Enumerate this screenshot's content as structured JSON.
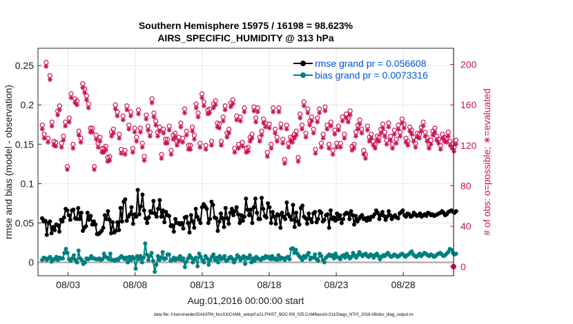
{
  "chart_data": {
    "type": "line",
    "title_line1": "Southern Hemisphere 15975 / 16198 = 98.623%",
    "title_line2": "AIRS_SPECIFIC_HUMIDITY @ 313 hPa",
    "xlabel": "Aug.01,2016 00:00:00 start",
    "ylabel_left": "rmse and bias (model - observation)",
    "ylabel_right": "# of obs: o=possible; ∗=evaluated",
    "footnote": "data file: /Users/raeder/DAI/ATM_forcXX/CAM6_setup/f.e21.FHIST_BGC.f09_025.CAM6assim.011/Diags_NTrS_2016-08/obs_diag_output.nc",
    "x_tick_labels": [
      "08/03",
      "08/08",
      "08/13",
      "08/18",
      "08/23",
      "08/28"
    ],
    "x_tick_values": [
      3,
      8,
      13,
      18,
      23,
      28
    ],
    "xlim": [
      0.75,
      31.75
    ],
    "y_left_ticks": [
      0,
      0.05,
      0.1,
      0.15,
      0.2,
      0.25
    ],
    "y_left_tick_labels": [
      "0",
      "0.05",
      "0.1",
      "0.15",
      "0.2",
      "0.25"
    ],
    "ylim_left": [
      -0.017,
      0.272
    ],
    "y_right_ticks": [
      0,
      40,
      80,
      120,
      160,
      200
    ],
    "y_right_tick_labels": [
      "0",
      "40",
      "80",
      "120",
      "160",
      "200"
    ],
    "ylim_right": [
      -9,
      216
    ],
    "grid": true,
    "legend_position": "top-right",
    "colors": {
      "rmse": "#000000",
      "bias": "#00807f",
      "counts": "#cc1155",
      "legend_text": "#0055dd",
      "zero_line": "#b0b0b0"
    },
    "series": [
      {
        "name": "rmse",
        "legend": "rmse grand pr = 0.056608",
        "axis": "left",
        "values": [
          0.056,
          0.052,
          0.053,
          0.035,
          0.05,
          0.052,
          0.037,
          0.045,
          0.041,
          0.048,
          0.047,
          0.039,
          0.054,
          0.052,
          0.057,
          0.068,
          0.066,
          0.06,
          0.054,
          0.066,
          0.067,
          0.056,
          0.055,
          0.069,
          0.055,
          0.063,
          0.04,
          0.044,
          0.046,
          0.063,
          0.054,
          0.059,
          0.048,
          0.052,
          0.048,
          0.036,
          0.036,
          0.038,
          0.04,
          0.044,
          0.06,
          0.055,
          0.065,
          0.054,
          0.037,
          0.051,
          0.038,
          0.04,
          0.051,
          0.041,
          0.069,
          0.052,
          0.077,
          0.08,
          0.053,
          0.058,
          0.061,
          0.07,
          0.049,
          0.061,
          0.058,
          0.092,
          0.061,
          0.071,
          0.086,
          0.066,
          0.056,
          0.05,
          0.057,
          0.065,
          0.063,
          0.078,
          0.062,
          0.058,
          0.068,
          0.079,
          0.058,
          0.066,
          0.051,
          0.064,
          0.06,
          0.059,
          0.046,
          0.047,
          0.039,
          0.055,
          0.05,
          0.05,
          0.048,
          0.05,
          0.043,
          0.057,
          0.058,
          0.05,
          0.038,
          0.06,
          0.052,
          0.044,
          0.068,
          0.058,
          0.054,
          0.05,
          0.07,
          0.074,
          0.071,
          0.068,
          0.05,
          0.055,
          0.077,
          0.073,
          0.057,
          0.056,
          0.04,
          0.052,
          0.062,
          0.056,
          0.045,
          0.069,
          0.056,
          0.049,
          0.063,
          0.068,
          0.06,
          0.065,
          0.07,
          0.061,
          0.05,
          0.06,
          0.053,
          0.058,
          0.081,
          0.067,
          0.06,
          0.067,
          0.05,
          0.07,
          0.081,
          0.063,
          0.055,
          0.055,
          0.082,
          0.068,
          0.059,
          0.057,
          0.075,
          0.07,
          0.05,
          0.064,
          0.058,
          0.049,
          0.061,
          0.06,
          0.044,
          0.063,
          0.058,
          0.055,
          0.076,
          0.061,
          0.058,
          0.054,
          0.073,
          0.045,
          0.063,
          0.052,
          0.048,
          0.069,
          0.072,
          0.058,
          0.056,
          0.049,
          0.062,
          0.055,
          0.051,
          0.062,
          0.064,
          0.051,
          0.055,
          0.065,
          0.063,
          0.052,
          0.054,
          0.06,
          0.061,
          0.044,
          0.066,
          0.055,
          0.057,
          0.053,
          0.062,
          0.055,
          0.06,
          0.05,
          0.055,
          0.061,
          0.063,
          0.062,
          0.055,
          0.065,
          0.06,
          0.048,
          0.059,
          0.052,
          0.055,
          0.058,
          0.06,
          0.055,
          0.056,
          0.053,
          0.057,
          0.054,
          0.058,
          0.058,
          0.061,
          0.066,
          0.063,
          0.055,
          0.06,
          0.064,
          0.059,
          0.054,
          0.058,
          0.065,
          0.06,
          0.055,
          0.058,
          0.06,
          0.057,
          0.056,
          0.062,
          0.064,
          0.066,
          0.06,
          0.058,
          0.062,
          0.061,
          0.058,
          0.059,
          0.063,
          0.061,
          0.059,
          0.06,
          0.062,
          0.058,
          0.06,
          0.061,
          0.059,
          0.063,
          0.062,
          0.06,
          0.061,
          0.059,
          0.06,
          0.061,
          0.062,
          0.063,
          0.065,
          0.063,
          0.06,
          0.061,
          0.064,
          0.065,
          0.066,
          0.064,
          0.063,
          0.065
        ]
      },
      {
        "name": "bias",
        "legend": "bias grand pr = 0.0073316",
        "axis": "left",
        "values": [
          0.003,
          0.006,
          0.005,
          0.003,
          0.005,
          0.007,
          0.001,
          0.004,
          0.004,
          0.007,
          0.003,
          0.006,
          0.005,
          0.005,
          0.012,
          0.017,
          0.012,
          0.004,
          0.002,
          0.005,
          0.009,
          0.003,
          0.0,
          0.015,
          0.005,
          0.003,
          -0.002,
          0.0,
          0.005,
          0.004,
          0.005,
          0.008,
          0.005,
          0.005,
          0.004,
          0.004,
          0.005,
          0.003,
          0.004,
          0.011,
          0.007,
          0.006,
          0.004,
          0.011,
          0.003,
          0.003,
          0.002,
          0.004,
          0.003,
          0.006,
          0.008,
          0.006,
          0.004,
          0.006,
          0.0,
          0.007,
          0.003,
          0.007,
          0.005,
          -0.008,
          0.008,
          0.004,
          0.008,
          0.0,
          0.006,
          0.024,
          0.01,
          0.003,
          0.008,
          0.012,
          0.002,
          -0.012,
          -0.003,
          0.008,
          0.003,
          0.006,
          0.013,
          0.004,
          0.005,
          0.01,
          0.01,
          0.002,
          0.003,
          0.006,
          0.003,
          0.005,
          0.004,
          0.008,
          0.003,
          0.005,
          -0.006,
          0.001,
          0.005,
          0.009,
          0.006,
          0.0,
          0.004,
          0.006,
          -0.005,
          0.011,
          0.007,
          0.003,
          0.0,
          0.008,
          0.005,
          -0.003,
          0.003,
          0.007,
          0.01,
          0.003,
          0.006,
          0.0,
          0.008,
          0.004,
          0.005,
          0.008,
          0.002,
          0.003,
          0.006,
          0.007,
          0.004,
          0.0,
          0.004,
          0.009,
          0.007,
          0.003,
          0.005,
          0.008,
          -0.002,
          0.006,
          0.005,
          0.009,
          0.0,
          0.005,
          0.002,
          0.007,
          0.005,
          0.004,
          0.003,
          0.006,
          0.005,
          0.008,
          0.006,
          0.007,
          0.004,
          0.008,
          0.004,
          0.005,
          0.003,
          0.009,
          0.004,
          0.006,
          0.005,
          0.003,
          0.006,
          0.007,
          0.004,
          0.017,
          0.018,
          0.012,
          0.016,
          0.011,
          0.008,
          0.006,
          0.003,
          0.008,
          0.006,
          0.009,
          0.012,
          0.004,
          0.006,
          0.006,
          0.01,
          0.004,
          0.002,
          0.011,
          0.008,
          0.003,
          0.0,
          0.006,
          0.008,
          0.01,
          0.008,
          0.009,
          0.005,
          0.011,
          0.007,
          0.006,
          0.004,
          0.008,
          0.009,
          0.006,
          0.011,
          0.008,
          0.005,
          0.007,
          0.012,
          0.009,
          0.006,
          0.009,
          0.013,
          0.01,
          0.008,
          0.01,
          0.011,
          0.008,
          0.007,
          0.01,
          0.009,
          0.006,
          0.009,
          0.011,
          0.008,
          0.004,
          0.007,
          0.009,
          0.008,
          0.01,
          0.012,
          0.009,
          0.007,
          0.008,
          0.01,
          0.009,
          0.007,
          0.008,
          0.01,
          0.011,
          0.009,
          0.007,
          0.009,
          0.01,
          0.012,
          0.014,
          0.01,
          0.008,
          0.007,
          0.009,
          0.011,
          0.008,
          0.01,
          0.012,
          0.011,
          0.009,
          0.008,
          0.01,
          0.009,
          0.007,
          0.008,
          0.01,
          0.011,
          0.012,
          0.01,
          0.008,
          0.009,
          0.011,
          0.013,
          0.017,
          0.016,
          0.012,
          0.01,
          0.011
        ]
      },
      {
        "name": "possible",
        "legend": "",
        "axis": "right",
        "marker": "o",
        "values": [
          140,
          131,
          202,
          127,
          189,
          143,
          124,
          123,
          154,
          159,
          122,
          129,
          143,
          99,
          147,
          171,
          121,
          166,
          164,
          134,
          127,
          181,
          176,
          169,
          161,
          137,
          137,
          99,
          130,
          122,
          128,
          117,
          117,
          119,
          108,
          109,
          133,
          136,
          160,
          153,
          131,
          116,
          149,
          115,
          159,
          140,
          153,
          117,
          137,
          128,
          155,
          137,
          122,
          109,
          150,
          139,
          133,
          166,
          152,
          144,
          133,
          138,
          111,
          136,
          126,
          126,
          139,
          115,
          130,
          132,
          124,
          128,
          142,
          127,
          156,
          134,
          120,
          120,
          138,
          130,
          161,
          152,
          122,
          171,
          163,
          120,
          155,
          156,
          124,
          161,
          164,
          142,
          141,
          124,
          148,
          159,
          132,
          136,
          162,
          165,
          117,
          149,
          121,
          148,
          123,
          157,
          117,
          118,
          128,
          131,
          158,
          147,
          157,
          128,
          134,
          146,
          142,
          113,
          141,
          121,
          157,
          136,
          128,
          157,
          141,
          126,
          106,
          140,
          122,
          128,
          127,
          131,
          134,
          108,
          151,
          140,
          163,
          132,
          156,
          144,
          148,
          136,
          116,
          147,
          156,
          122,
          131,
          158,
          140,
          121,
          143,
          115,
          135,
          122,
          139,
          122,
          148,
          131,
          151,
          147,
          154,
          119,
          121,
          133,
          140,
          145,
          136,
          115,
          111,
          139,
          128,
          131,
          124,
          121,
          129,
          128,
          136,
          141,
          133,
          125,
          142,
          129,
          121,
          135,
          126,
          140,
          133,
          146,
          141,
          127,
          124,
          138,
          135,
          128,
          122,
          132,
          131,
          138,
          143,
          133,
          128,
          121,
          125,
          134,
          137,
          129,
          126,
          120,
          131,
          128,
          127,
          133,
          124,
          121,
          118,
          125
        ]
      },
      {
        "name": "evaluated",
        "legend": "",
        "axis": "right",
        "marker": "*",
        "values": [
          136,
          127,
          198,
          123,
          185,
          139,
          120,
          119,
          150,
          155,
          118,
          125,
          139,
          96,
          143,
          167,
          117,
          162,
          160,
          130,
          123,
          177,
          172,
          165,
          157,
          133,
          133,
          96,
          126,
          118,
          124,
          113,
          113,
          115,
          104,
          105,
          129,
          132,
          156,
          149,
          127,
          112,
          145,
          111,
          155,
          136,
          149,
          113,
          133,
          124,
          151,
          133,
          118,
          105,
          146,
          135,
          129,
          162,
          148,
          140,
          129,
          134,
          107,
          132,
          122,
          122,
          135,
          111,
          126,
          128,
          120,
          124,
          138,
          123,
          152,
          130,
          116,
          116,
          134,
          126,
          157,
          148,
          118,
          167,
          159,
          116,
          151,
          152,
          120,
          157,
          160,
          138,
          137,
          120,
          144,
          155,
          128,
          132,
          158,
          161,
          113,
          145,
          117,
          144,
          119,
          153,
          113,
          114,
          124,
          127,
          154,
          143,
          153,
          124,
          130,
          142,
          138,
          109,
          137,
          117,
          153,
          132,
          124,
          153,
          137,
          122,
          102,
          136,
          118,
          124,
          123,
          127,
          130,
          104,
          147,
          136,
          159,
          128,
          152,
          140,
          144,
          132,
          112,
          143,
          152,
          118,
          127,
          154,
          136,
          117,
          139,
          111,
          131,
          118,
          135,
          118,
          144,
          127,
          147,
          143,
          150,
          115,
          117,
          129,
          136,
          141,
          132,
          111,
          107,
          135,
          124,
          127,
          120,
          117,
          125,
          124,
          132,
          137,
          129,
          121,
          138,
          125,
          117,
          131,
          122,
          136,
          129,
          142,
          137,
          123,
          120,
          134,
          131,
          124,
          118,
          128,
          127,
          134,
          139,
          129,
          124,
          117,
          121,
          130,
          133,
          125,
          122,
          116,
          127,
          124,
          123,
          129,
          120,
          117,
          114,
          121
        ]
      }
    ]
  }
}
